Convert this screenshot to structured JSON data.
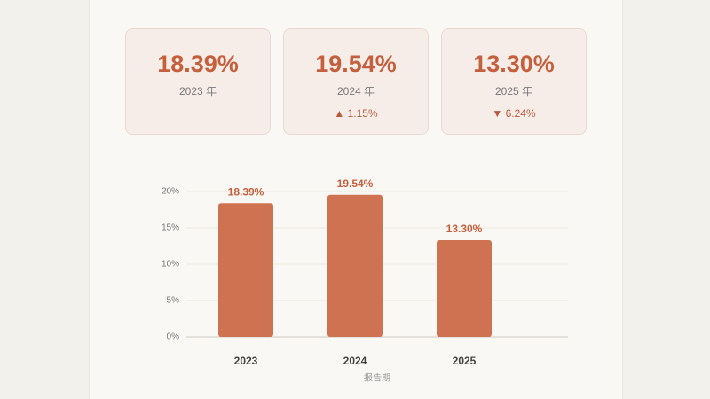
{
  "cards": [
    {
      "value": "18.39%",
      "label": "2023 年"
    },
    {
      "value": "19.54%",
      "label": "2024 年",
      "change": "▲ 1.15%"
    },
    {
      "value": "13.30%",
      "label": "2025 年",
      "change": "▼ 6.24%"
    }
  ],
  "chart_data": {
    "type": "bar",
    "categories": [
      "2023",
      "2024",
      "2025"
    ],
    "values": [
      18.39,
      19.54,
      13.3
    ],
    "value_labels": [
      "18.39%",
      "19.54%",
      "13.30%"
    ],
    "color": "#cf7252",
    "x_label": "报告期",
    "ylim": [
      0,
      20
    ],
    "yticks": [
      {
        "value": 0,
        "label": "0%"
      },
      {
        "value": 5,
        "label": "5%"
      },
      {
        "value": 10,
        "label": "10%"
      },
      {
        "value": 15,
        "label": "15%"
      },
      {
        "value": 20,
        "label": "20%"
      }
    ],
    "grid": true
  }
}
